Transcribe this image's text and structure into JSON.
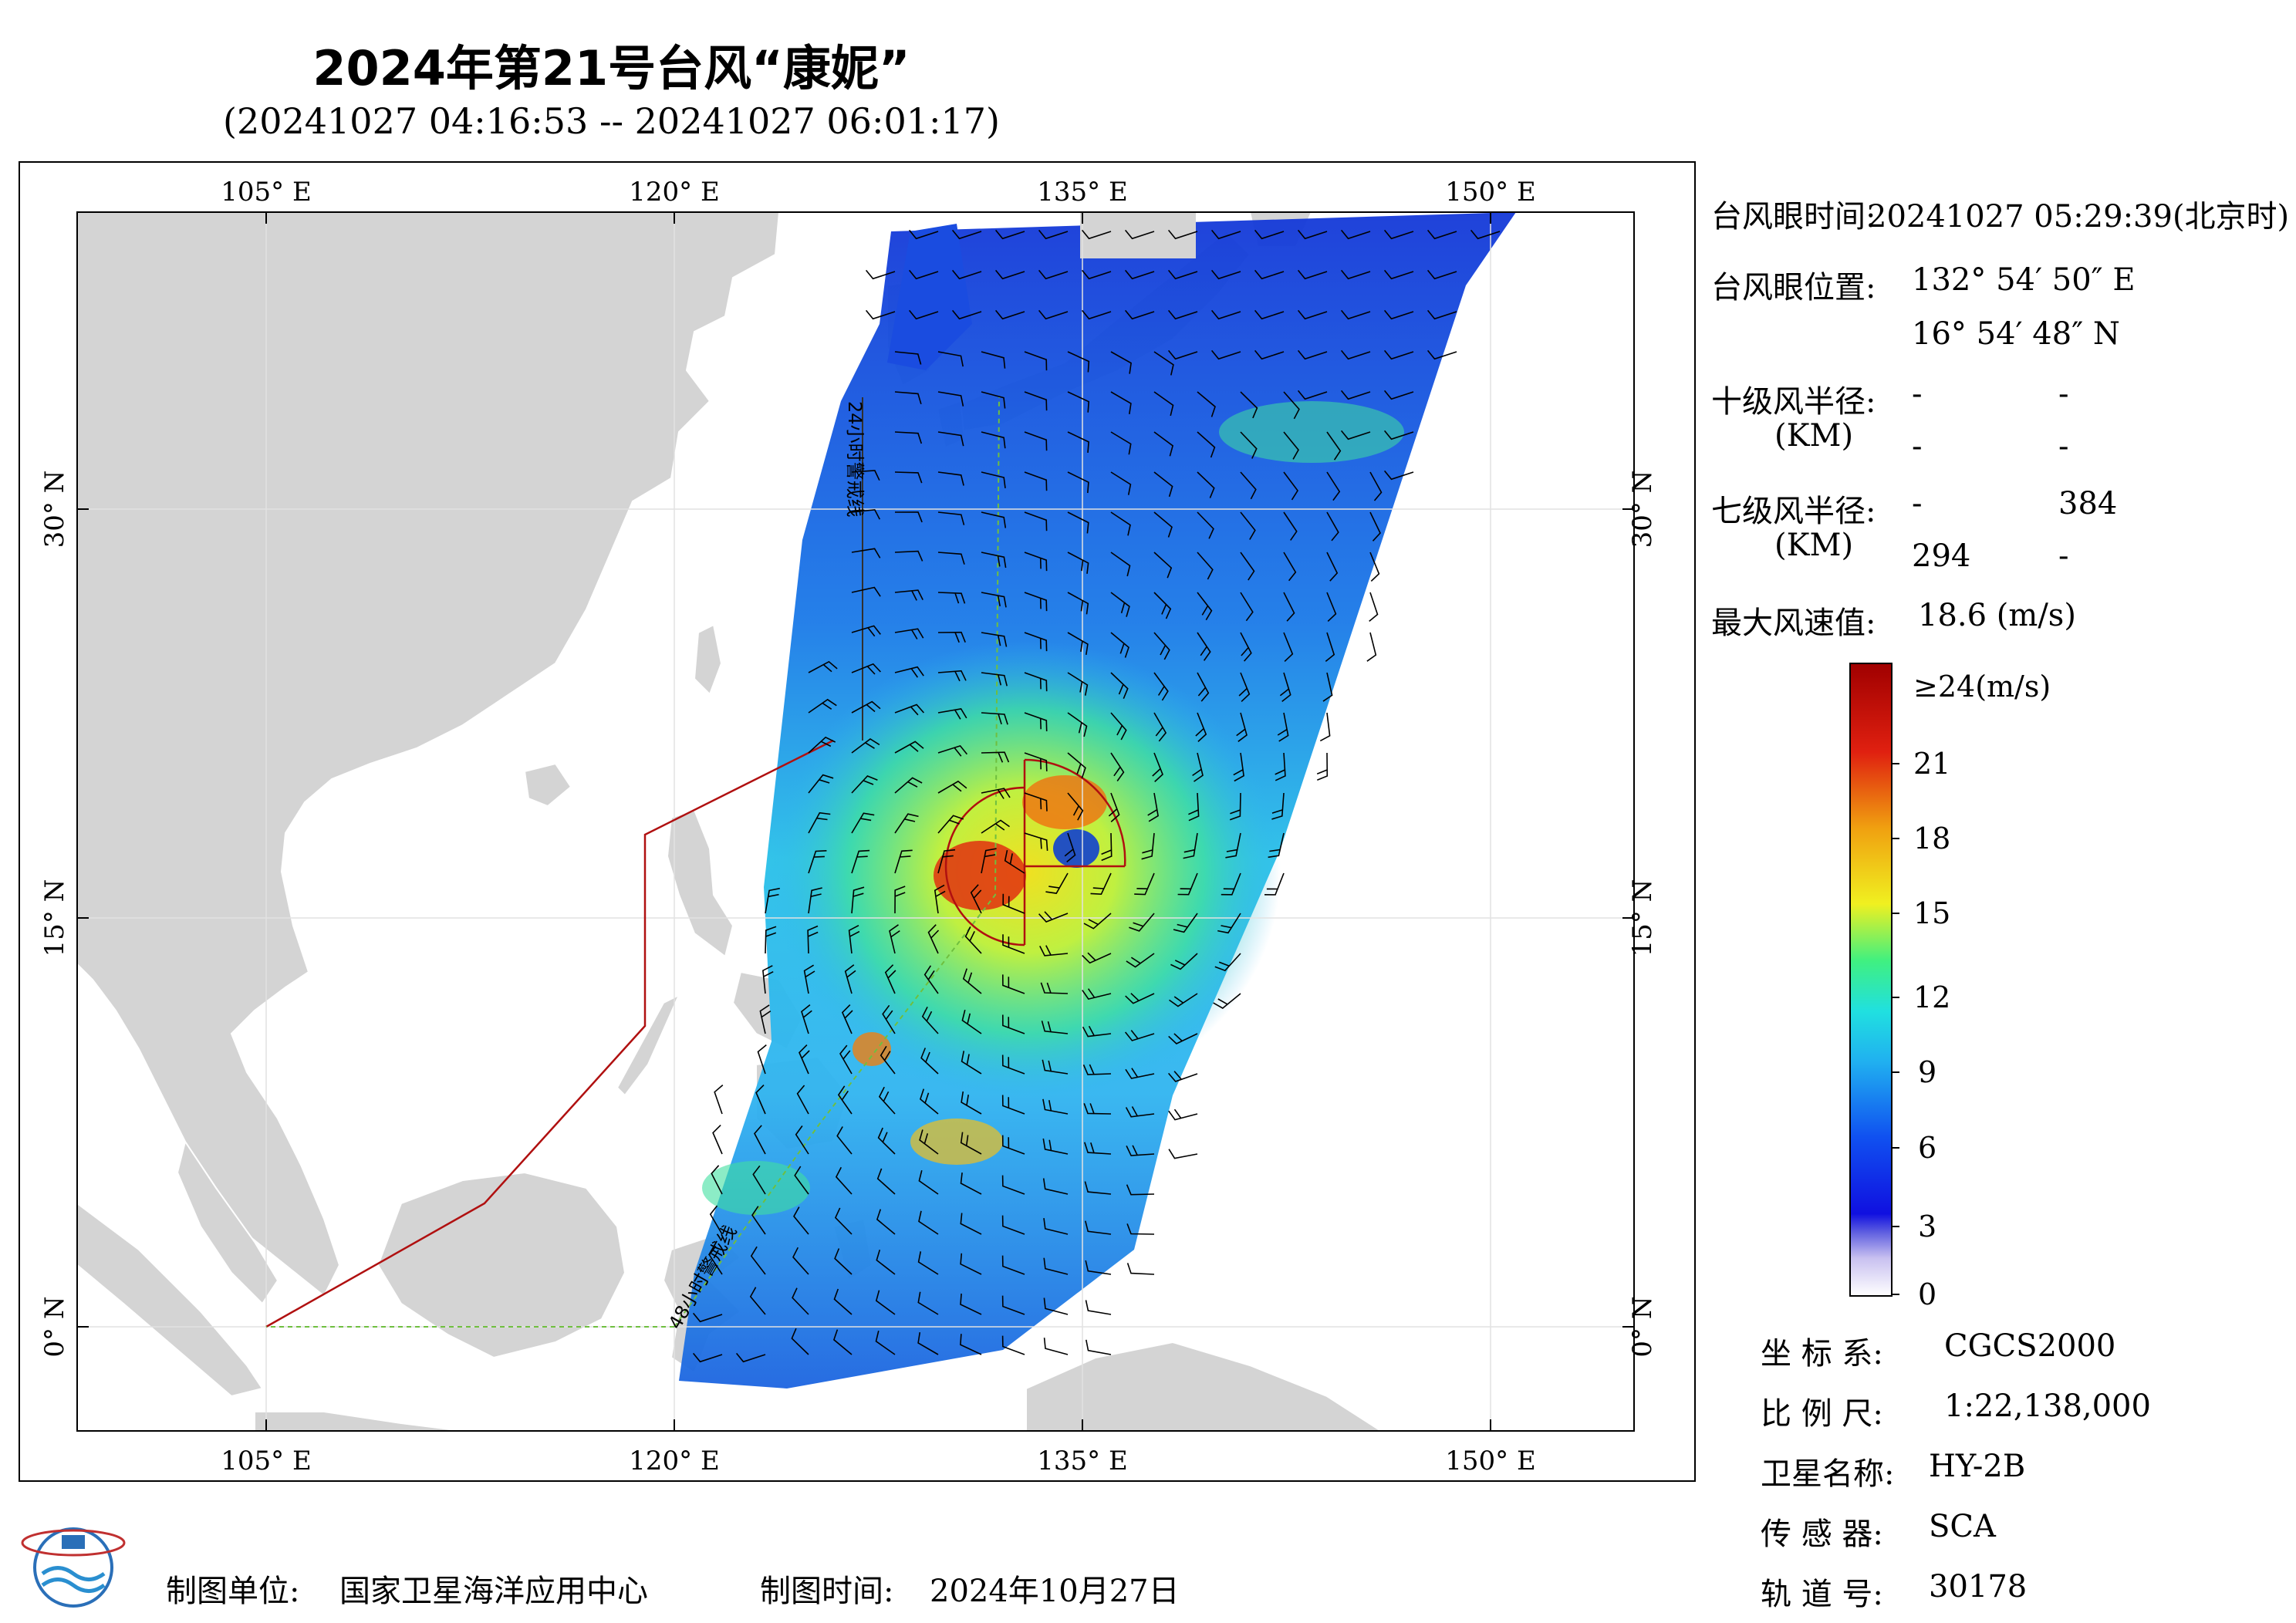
{
  "title": "2024年第21号台风“康妮”",
  "subtitle": "(20241027 04:16:53 -- 20241027 06:01:17)",
  "map": {
    "lon_labels_top": [
      "105° E",
      "120° E",
      "135° E",
      "150° E"
    ],
    "lon_labels_bottom": [
      "105° E",
      "120° E",
      "135° E",
      "150° E"
    ],
    "lat_labels": [
      "30° N",
      "15° N",
      "0° N"
    ],
    "line_24h": "24小时警戒线",
    "line_48h": "48小时警戒线",
    "colors": {
      "land": "#d4d4d4",
      "ocean": "#ffffff",
      "boundary": "#b01010",
      "warning24": "#202020",
      "warning48": "#6fbf3f"
    }
  },
  "info": {
    "eye_time_label": "台风眼时间:",
    "eye_time_value": "20241027 05:29:39(北京时)",
    "eye_pos_label": "台风眼位置:",
    "eye_lon": "132° 54′ 50″ E",
    "eye_lat": "16° 54′ 48″ N",
    "r10_label": "十级风半径:",
    "r10_unit": "(KM)",
    "r10_values": [
      "-",
      "-",
      "-",
      "-"
    ],
    "r7_label": "七级风半径:",
    "r7_unit": "(KM)",
    "r7_values": [
      "-",
      "384",
      "294",
      "-"
    ],
    "max_wind_label": "最大风速值:",
    "max_wind_value": "18.6 (m/s)"
  },
  "colorbar": {
    "top_label": "≥24(m/s)",
    "ticks": [
      "21",
      "18",
      "15",
      "12",
      "9",
      "6",
      "3",
      "0"
    ],
    "stops": [
      "#ffffff",
      "#c8c0f0",
      "#6060e0",
      "#1010e0",
      "#1050f0",
      "#20a0f0",
      "#20e0e0",
      "#40f080",
      "#c0f040",
      "#f0f020",
      "#f0a010",
      "#f05010",
      "#e01010",
      "#a00000"
    ]
  },
  "meta": {
    "crs_label": "坐 标 系:",
    "crs_value": "CGCS2000",
    "scale_label": "比 例 尺:",
    "scale_value": "1:22,138,000",
    "satellite_label": "卫星名称:",
    "satellite_value": "HY-2B",
    "sensor_label": "传 感 器:",
    "sensor_value": "SCA",
    "orbit_label": "轨 道 号:",
    "orbit_value": "30178"
  },
  "footer": {
    "producer_label": "制图单位:",
    "producer_value": "国家卫星海洋应用中心",
    "date_label": "制图时间:",
    "date_value": "2024年10月27日"
  }
}
